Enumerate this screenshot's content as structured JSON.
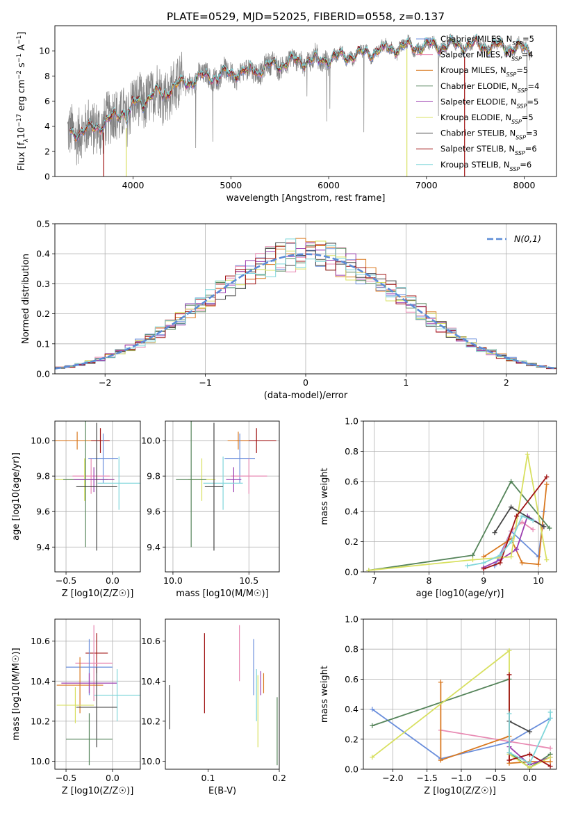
{
  "figure_title": "PLATE=0529, MJD=52025, FIBERID=0558, z=0.137",
  "colors": {
    "Chabrier MILES": "#6b8fdc",
    "Salpeter MILES": "#e88ab3",
    "Kroupa MILES": "#d9781f",
    "Chabrier ELODIE": "#55845a",
    "Salpeter ELODIE": "#9b3fb0",
    "Kroupa ELODIE": "#d8e060",
    "Chabrier STELIB": "#444444",
    "Salpeter STELIB": "#a01414",
    "Kroupa STELIB": "#7fd6da",
    "data": "#808080",
    "normal": "#5b8bd6",
    "grid": "#b0b0b0"
  },
  "chart_data": [
    {
      "id": "spectrum",
      "type": "line",
      "xlabel": "wavelength [Angstrom, rest frame]",
      "ylabel": "Flux [f_λ 10^-17 erg cm^-2 s^-1 A^-1]",
      "xlim": [
        3200,
        8330
      ],
      "ylim": [
        0,
        12
      ],
      "xticks": [
        4000,
        5000,
        6000,
        7000,
        8000
      ],
      "yticks": [
        0,
        2,
        4,
        6,
        8,
        10
      ],
      "grid": false,
      "legend_position": "top-right",
      "continuum": {
        "x": [
          3350,
          3500,
          3700,
          3900,
          4000,
          4200,
          4400,
          4700,
          5000,
          5300,
          5600,
          6000,
          6300,
          6600,
          7000,
          7400,
          7800,
          8050
        ],
        "y": [
          3.5,
          3.6,
          4.2,
          5.2,
          5.7,
          6.5,
          7.1,
          7.9,
          8.2,
          8.6,
          9.1,
          9.4,
          9.7,
          10.2,
          10.4,
          10.5,
          10.3,
          10.1
        ]
      },
      "series": [
        {
          "name": "Chabrier MILES, N_SSP=5"
        },
        {
          "name": "Salpeter MILES, N_SSP=4"
        },
        {
          "name": "Kroupa MILES, N_SSP=5"
        },
        {
          "name": "Chabrier ELODIE, N_SSP=4"
        },
        {
          "name": "Salpeter ELODIE, N_SSP=5"
        },
        {
          "name": "Kroupa ELODIE, N_SSP=5"
        },
        {
          "name": "Chabrier STELIB, N_SSP=3"
        },
        {
          "name": "Salpeter STELIB, N_SSP=6"
        },
        {
          "name": "Kroupa STELIB, N_SSP=6"
        }
      ]
    },
    {
      "id": "residuals",
      "type": "histogram",
      "xlabel": "(data-model)/error",
      "ylabel": "Normed distribution",
      "xlim": [
        -2.5,
        2.5
      ],
      "ylim": [
        0,
        0.5
      ],
      "xticks": [
        -2,
        -1,
        0,
        1,
        2
      ],
      "yticks": [
        0,
        0.1,
        0.2,
        0.3,
        0.4,
        0.5
      ],
      "grid": true,
      "legend": "N(0,1)",
      "legend_position": "top-right",
      "bin_width": 0.1
    },
    {
      "id": "age_vs_Z",
      "type": "errorbar",
      "xlabel": "Z [log10(Z/Z☉)]",
      "ylabel": "age [log10(age/yr)]",
      "xlim": [
        -0.62,
        0.3
      ],
      "ylim": [
        9.26,
        10.11
      ],
      "xticks": [
        -0.5,
        0.0
      ],
      "yticks": [
        9.4,
        9.6,
        9.8,
        10.0
      ],
      "grid": true,
      "points": [
        {
          "series": "Kroupa MILES",
          "x": -0.38,
          "xerr": 0.26,
          "y": 10.0,
          "yerr": 0.05
        },
        {
          "series": "Salpeter STELIB",
          "x": -0.13,
          "xerr": 0.1,
          "y": 10.0,
          "yerr": 0.07
        },
        {
          "series": "Chabrier MILES",
          "x": -0.1,
          "xerr": 0.16,
          "y": 9.9,
          "yerr": 0.14
        },
        {
          "series": "Salpeter MILES",
          "x": -0.23,
          "xerr": 0.2,
          "y": 9.8,
          "yerr": 0.1
        },
        {
          "series": "Kroupa ELODIE",
          "x": -0.3,
          "xerr": 0.32,
          "y": 9.78,
          "yerr": 0.12
        },
        {
          "series": "Chabrier ELODIE",
          "x": -0.29,
          "xerr": 0.24,
          "y": 9.78,
          "yerr": 0.38
        },
        {
          "series": "Salpeter ELODIE",
          "x": -0.2,
          "xerr": 0.22,
          "y": 9.78,
          "yerr": 0.07
        },
        {
          "series": "Kroupa STELIB",
          "x": 0.07,
          "xerr": 0.23,
          "y": 9.76,
          "yerr": 0.15
        },
        {
          "series": "Chabrier STELIB",
          "x": -0.17,
          "xerr": 0.22,
          "y": 9.74,
          "yerr": 0.36
        }
      ]
    },
    {
      "id": "age_vs_mass",
      "type": "errorbar",
      "xlabel": "mass [log10(M/M☉)]",
      "ylabel": "",
      "xlim": [
        9.95,
        10.7
      ],
      "ylim": [
        9.26,
        10.11
      ],
      "xticks": [
        10.0,
        10.5
      ],
      "yticks": [
        9.4,
        9.6,
        9.8,
        10.0
      ],
      "grid": true,
      "points": [
        {
          "series": "Salpeter STELIB",
          "x": 10.55,
          "xerr": 0.13,
          "y": 10.0,
          "yerr": 0.07
        },
        {
          "series": "Kroupa MILES",
          "x": 10.43,
          "xerr": 0.07,
          "y": 10.0,
          "yerr": 0.05
        },
        {
          "series": "Chabrier MILES",
          "x": 10.44,
          "xerr": 0.1,
          "y": 9.9,
          "yerr": 0.14
        },
        {
          "series": "Salpeter MILES",
          "x": 10.5,
          "xerr": 0.12,
          "y": 9.8,
          "yerr": 0.1
        },
        {
          "series": "Kroupa ELODIE",
          "x": 10.19,
          "xerr": 0.09,
          "y": 9.78,
          "yerr": 0.12
        },
        {
          "series": "Salpeter ELODIE",
          "x": 10.4,
          "xerr": 0.05,
          "y": 9.78,
          "yerr": 0.07
        },
        {
          "series": "Chabrier ELODIE",
          "x": 10.12,
          "xerr": 0.1,
          "y": 9.78,
          "yerr": 0.38
        },
        {
          "series": "Kroupa STELIB",
          "x": 10.33,
          "xerr": 0.13,
          "y": 9.76,
          "yerr": 0.15
        },
        {
          "series": "Chabrier STELIB",
          "x": 10.27,
          "xerr": 0.06,
          "y": 9.74,
          "yerr": 0.36
        }
      ]
    },
    {
      "id": "massweight_vs_age",
      "type": "line",
      "xlabel": "age [log10(age/yr)]",
      "ylabel": "mass weight",
      "xlim": [
        6.8,
        10.33
      ],
      "ylim": [
        0,
        1
      ],
      "xticks": [
        7,
        8,
        9,
        10
      ],
      "yticks": [
        0,
        0.2,
        0.4,
        0.6,
        0.8,
        1.0
      ],
      "grid": true,
      "series": [
        {
          "series": "Chabrier MILES",
          "x": [
            9.2,
            9.5,
            10.0,
            10.1
          ],
          "y": [
            0.04,
            0.27,
            0.1,
            0.4
          ]
        },
        {
          "series": "Salpeter MILES",
          "x": [
            9.3,
            9.5,
            9.7,
            9.9
          ],
          "y": [
            0.1,
            0.27,
            0.33,
            0.28
          ]
        },
        {
          "series": "Kroupa MILES",
          "x": [
            9.0,
            9.5,
            9.7,
            10.0,
            10.15
          ],
          "y": [
            0.1,
            0.22,
            0.06,
            0.05,
            0.58
          ]
        },
        {
          "series": "Chabrier ELODIE",
          "x": [
            6.9,
            8.8,
            9.5,
            10.2
          ],
          "y": [
            0.01,
            0.11,
            0.6,
            0.29
          ]
        },
        {
          "series": "Salpeter ELODIE",
          "x": [
            9.0,
            9.3,
            9.6,
            9.8,
            10.1
          ],
          "y": [
            0.03,
            0.08,
            0.15,
            0.37,
            0.3
          ]
        },
        {
          "series": "Kroupa ELODIE",
          "x": [
            6.9,
            8.8,
            9.5,
            9.8,
            10.15
          ],
          "y": [
            0.01,
            0.08,
            0.1,
            0.78,
            0.08
          ]
        },
        {
          "series": "Chabrier STELIB",
          "x": [
            9.2,
            9.5,
            10.1
          ],
          "y": [
            0.26,
            0.43,
            0.3
          ]
        },
        {
          "series": "Salpeter STELIB",
          "x": [
            9.0,
            9.3,
            9.6,
            10.15
          ],
          "y": [
            0.02,
            0.06,
            0.37,
            0.63
          ]
        },
        {
          "series": "Kroupa STELIB",
          "x": [
            8.7,
            9.0,
            9.3,
            9.5,
            9.7,
            9.9
          ],
          "y": [
            0.04,
            0.06,
            0.11,
            0.2,
            0.37,
            0.34
          ]
        }
      ]
    },
    {
      "id": "mass_vs_Z",
      "type": "errorbar",
      "xlabel": "Z [log10(Z/Z☉)]",
      "ylabel": "mass [log10(M/M☉)]",
      "xlim": [
        -0.62,
        0.3
      ],
      "ylim": [
        9.96,
        10.71
      ],
      "xticks": [
        -0.5,
        0.0
      ],
      "yticks": [
        10.0,
        10.2,
        10.4,
        10.6
      ],
      "grid": true,
      "points": [
        {
          "series": "Salpeter STELIB",
          "x": -0.17,
          "xerr": 0.12,
          "y": 10.54,
          "yerr": 0.1
        },
        {
          "series": "Salpeter MILES",
          "x": -0.2,
          "xerr": 0.2,
          "y": 10.49,
          "yerr": 0.19
        },
        {
          "series": "Chabrier MILES",
          "x": -0.25,
          "xerr": 0.25,
          "y": 10.47,
          "yerr": 0.14
        },
        {
          "series": "Kroupa MILES",
          "x": -0.35,
          "xerr": 0.25,
          "y": 10.38,
          "yerr": 0.14
        },
        {
          "series": "Salpeter ELODIE",
          "x": -0.25,
          "xerr": 0.3,
          "y": 10.39,
          "yerr": 0.05
        },
        {
          "series": "Kroupa STELIB",
          "x": 0.05,
          "xerr": 0.25,
          "y": 10.33,
          "yerr": 0.13
        },
        {
          "series": "Kroupa ELODIE",
          "x": -0.4,
          "xerr": 0.2,
          "y": 10.28,
          "yerr": 0.09
        },
        {
          "series": "Chabrier STELIB",
          "x": -0.17,
          "xerr": 0.22,
          "y": 10.27,
          "yerr": 0.2
        },
        {
          "series": "Chabrier ELODIE",
          "x": -0.25,
          "xerr": 0.25,
          "y": 10.11,
          "yerr": 0.13
        }
      ]
    },
    {
      "id": "mass_vs_ebv",
      "type": "errorbar",
      "xlabel": "E(B-V)",
      "ylabel": "",
      "xlim": [
        0.04,
        0.2
      ],
      "ylim": [
        9.96,
        10.71
      ],
      "xticks": [
        0.1,
        0.2
      ],
      "yticks": [
        10.0,
        10.2,
        10.4,
        10.6
      ],
      "grid": false,
      "points": [
        {
          "series": "Chabrier STELIB",
          "x": 0.046,
          "y": 10.27,
          "yerr": 0.11
        },
        {
          "series": "Salpeter STELIB",
          "x": 0.095,
          "y": 10.44,
          "yerr": 0.2
        },
        {
          "series": "Salpeter MILES",
          "x": 0.144,
          "y": 10.54,
          "yerr": 0.14
        },
        {
          "series": "Chabrier MILES",
          "x": 0.164,
          "y": 10.47,
          "yerr": 0.14
        },
        {
          "series": "Kroupa STELIB",
          "x": 0.168,
          "y": 10.33,
          "yerr": 0.13
        },
        {
          "series": "Kroupa ELODIE",
          "x": 0.17,
          "y": 10.25,
          "yerr": 0.18
        },
        {
          "series": "Salpeter ELODIE",
          "x": 0.174,
          "y": 10.39,
          "yerr": 0.06
        },
        {
          "series": "Kroupa MILES",
          "x": 0.178,
          "y": 10.39,
          "yerr": 0.05
        },
        {
          "series": "Chabrier ELODIE",
          "x": 0.197,
          "y": 10.15,
          "yerr": 0.17
        }
      ]
    },
    {
      "id": "massweight_vs_Z",
      "type": "line",
      "xlabel": "Z [log10(Z/Z☉)]",
      "ylabel": "mass weight",
      "xlim": [
        -2.43,
        0.39
      ],
      "ylim": [
        0,
        1
      ],
      "xticks": [
        -2.0,
        -1.5,
        -1.0,
        -0.5,
        0.0
      ],
      "yticks": [
        0,
        0.2,
        0.4,
        0.6,
        0.8,
        1.0
      ],
      "grid": true,
      "series": [
        {
          "series": "Chabrier MILES",
          "x": [
            -2.3,
            -1.3,
            -0.3,
            0.3
          ],
          "y": [
            0.4,
            0.07,
            0.18,
            0.34
          ]
        },
        {
          "series": "Salpeter MILES",
          "x": [
            -1.3,
            0.3
          ],
          "y": [
            0.26,
            0.14
          ]
        },
        {
          "series": "Kroupa MILES",
          "x": [
            -1.3,
            -1.3,
            -0.3,
            -0.3,
            0.0,
            0.3
          ],
          "y": [
            0.58,
            0.06,
            0.22,
            0.04,
            0.05,
            0.05
          ]
        },
        {
          "series": "Chabrier ELODIE",
          "x": [
            -2.3,
            -0.3,
            -0.3,
            0.0,
            0.3
          ],
          "y": [
            0.29,
            0.6,
            0.11,
            0.01,
            0.1
          ]
        },
        {
          "series": "Salpeter ELODIE",
          "x": [
            -0.3,
            0.0,
            0.3
          ],
          "y": [
            0.15,
            0.03,
            0.08
          ]
        },
        {
          "series": "Kroupa ELODIE",
          "x": [
            -2.3,
            -0.3,
            -0.3,
            0.0,
            0.3
          ],
          "y": [
            0.08,
            0.79,
            0.1,
            0.01,
            0.08
          ]
        },
        {
          "series": "Chabrier STELIB",
          "x": [
            -0.3,
            0.0
          ],
          "y": [
            0.32,
            0.25
          ]
        },
        {
          "series": "Salpeter STELIB",
          "x": [
            -0.3,
            -0.3,
            0.0,
            0.3
          ],
          "y": [
            0.63,
            0.06,
            0.1,
            0.02
          ]
        },
        {
          "series": "Kroupa STELIB",
          "x": [
            -0.3,
            -0.3,
            0.0,
            0.3,
            0.3
          ],
          "y": [
            0.37,
            0.11,
            0.04,
            0.34,
            0.38
          ]
        }
      ]
    }
  ]
}
